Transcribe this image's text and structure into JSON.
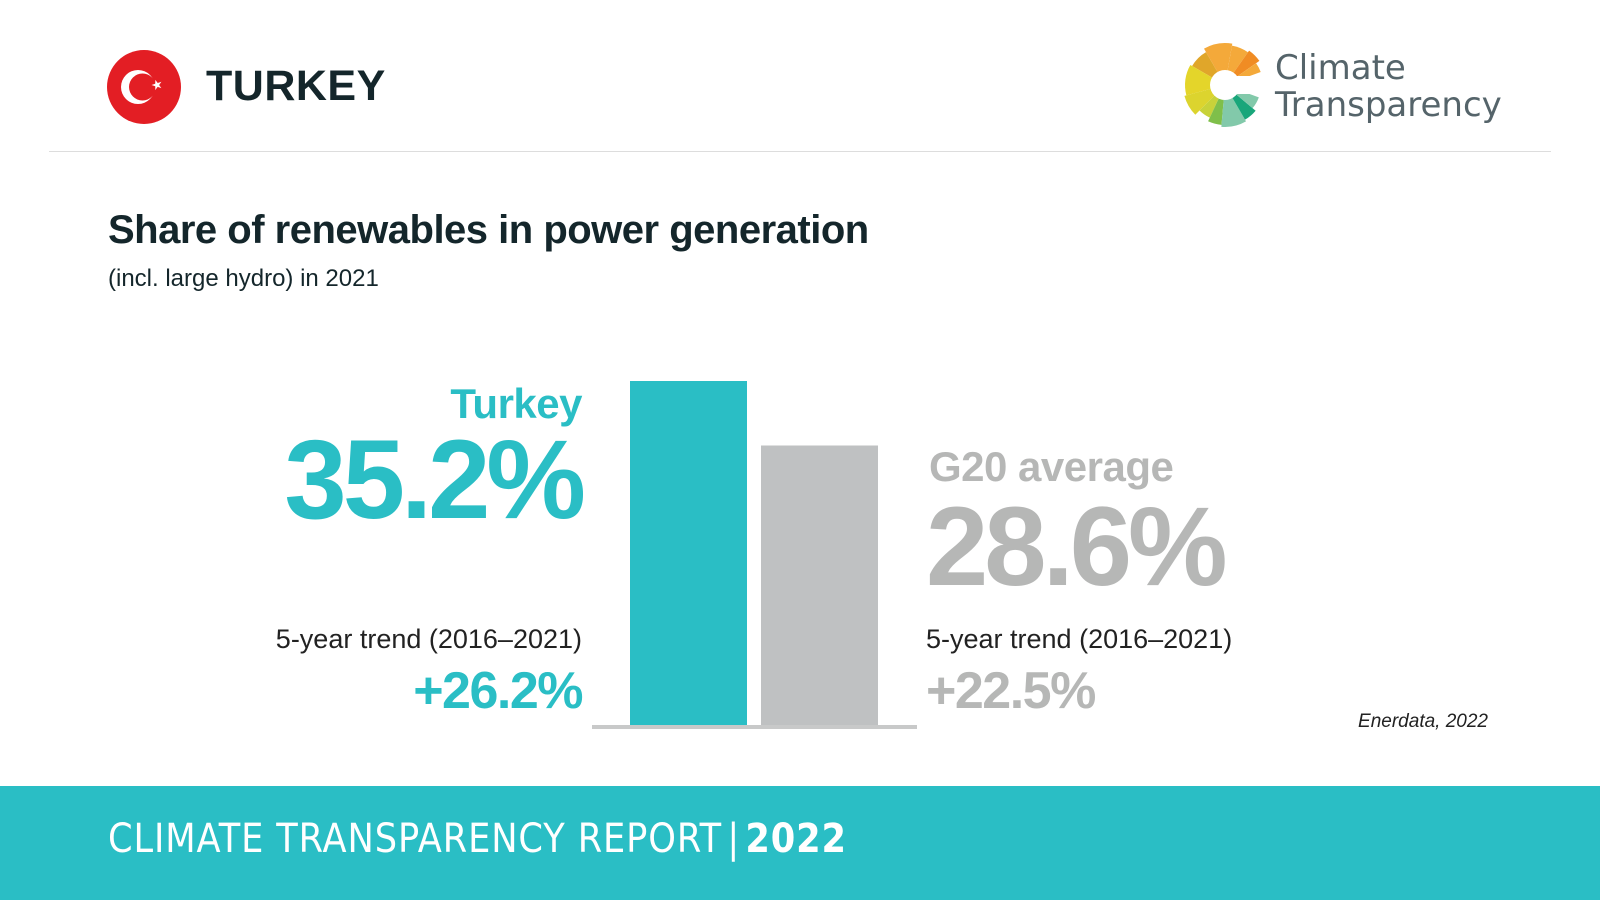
{
  "header": {
    "country": "TURKEY",
    "flag_icon": "turkey-flag-icon",
    "logo_icon": "climate-transparency-logo-icon",
    "logo_text_line1": "Climate",
    "logo_text_line2": "Transparency"
  },
  "title": "Share of renewables in power generation",
  "subtitle": "(incl. large hydro) in 2021",
  "left_panel": {
    "label": "Turkey",
    "value": "35.2%",
    "trend_label": "5-year trend (2016–2021)",
    "trend_value": "+26.2%"
  },
  "right_panel": {
    "label": "G20 average",
    "value": "28.6%",
    "trend_label": "5-year trend (2016–2021)",
    "trend_value": "+22.5%"
  },
  "source": "Enerdata, 2022",
  "footer": {
    "text": "CLIMATE TRANSPARENCY REPORT",
    "separator": "|",
    "year": "2022"
  },
  "colors": {
    "accent": "#2abec5",
    "g20": "#bfc1c2",
    "baseline": "#c8c9c9",
    "flag_red": "#e31e24"
  },
  "chart_data": {
    "type": "bar",
    "title": "Share of renewables in power generation",
    "subtitle": "(incl. large hydro) in 2021",
    "categories": [
      "Turkey",
      "G20 average"
    ],
    "values": [
      35.2,
      28.6
    ],
    "unit": "%",
    "trend_5yr_2016_2021": [
      26.2,
      22.5
    ],
    "ylim": [
      0,
      35.2
    ],
    "xlabel": "",
    "ylabel": "",
    "grid": false,
    "legend": "none",
    "colors": [
      "#2abec5",
      "#bfc1c2"
    ],
    "source": "Enerdata, 2022"
  }
}
